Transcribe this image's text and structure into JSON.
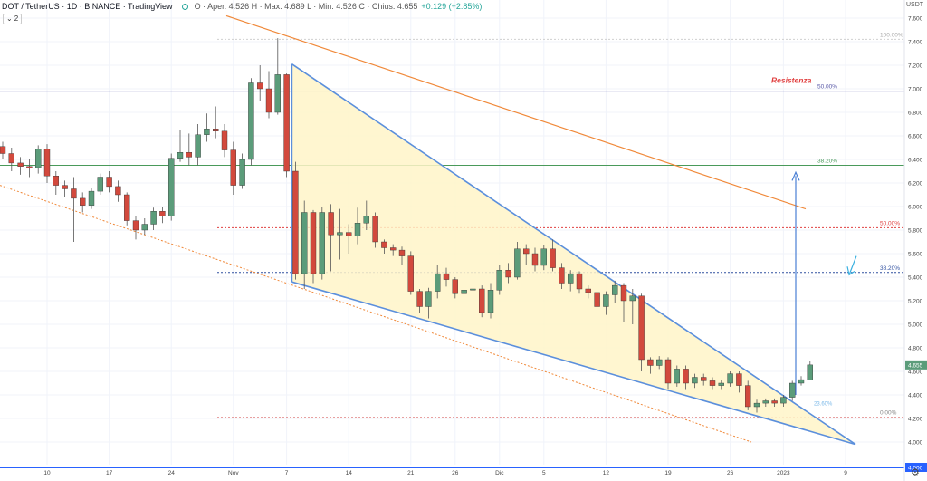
{
  "header": {
    "symbol": "DOT / TetherUS · 1D · BINANCE · TradingView",
    "ohlc": "O · Aper. 4.526  H · Max. 4.689  L · Min. 4.526  C · Chius. 4.655",
    "change": "+0.129 (+2.85%)",
    "indicator_count": "2",
    "currency": "USDT"
  },
  "colors": {
    "up": "#5b9c7a",
    "down": "#d2493d",
    "trend_blue": "#5b8fdc",
    "trend_orange": "#f0893a",
    "fill_yellow": "#fff5c8",
    "arrow": "#4a7fd4",
    "resistance_text": "#e03c3c"
  },
  "chart_data": {
    "type": "candlestick",
    "ylim": [
      4.0,
      7.6
    ],
    "y_ticks": [
      "7.600",
      "7.400",
      "7.200",
      "7.000",
      "6.800",
      "6.600",
      "6.400",
      "6.200",
      "6.000",
      "5.800",
      "5.600",
      "5.400",
      "5.200",
      "5.000",
      "4.800",
      "4.600",
      "4.400",
      "4.200",
      "4.000"
    ],
    "x_ticks": [
      {
        "label": "10",
        "idx": 5
      },
      {
        "label": "17",
        "idx": 12
      },
      {
        "label": "24",
        "idx": 19
      },
      {
        "label": "Nov",
        "idx": 26
      },
      {
        "label": "7",
        "idx": 32
      },
      {
        "label": "14",
        "idx": 39
      },
      {
        "label": "21",
        "idx": 46
      },
      {
        "label": "26",
        "idx": 51
      },
      {
        "label": "Dic",
        "idx": 56
      },
      {
        "label": "5",
        "idx": 61
      },
      {
        "label": "12",
        "idx": 68
      },
      {
        "label": "19",
        "idx": 75
      },
      {
        "label": "26",
        "idx": 82
      },
      {
        "label": "2023",
        "idx": 88
      },
      {
        "label": "9",
        "idx": 95
      }
    ],
    "current_price": "4.655",
    "floor_price": "4.000",
    "candles": [
      [
        6.51,
        6.45,
        6.55,
        6.4
      ],
      [
        6.45,
        6.37,
        6.5,
        6.3
      ],
      [
        6.37,
        6.34,
        6.42,
        6.27
      ],
      [
        6.34,
        6.33,
        6.4,
        6.25
      ],
      [
        6.33,
        6.49,
        6.52,
        6.28
      ],
      [
        6.49,
        6.26,
        6.53,
        6.2
      ],
      [
        6.26,
        6.18,
        6.3,
        6.1
      ],
      [
        6.18,
        6.15,
        6.22,
        6.08
      ],
      [
        6.15,
        6.07,
        6.25,
        5.7
      ],
      [
        6.07,
        6.01,
        6.12,
        5.95
      ],
      [
        6.01,
        6.13,
        6.16,
        5.98
      ],
      [
        6.13,
        6.25,
        6.28,
        6.1
      ],
      [
        6.25,
        6.17,
        6.3,
        6.12
      ],
      [
        6.17,
        6.1,
        6.22,
        6.04
      ],
      [
        6.1,
        5.88,
        6.12,
        5.84
      ],
      [
        5.88,
        5.8,
        5.92,
        5.72
      ],
      [
        5.8,
        5.85,
        5.9,
        5.76
      ],
      [
        5.85,
        5.96,
        5.99,
        5.8
      ],
      [
        5.96,
        5.92,
        6.0,
        5.86
      ],
      [
        5.92,
        6.41,
        6.45,
        5.88
      ],
      [
        6.41,
        6.46,
        6.65,
        6.38
      ],
      [
        6.46,
        6.42,
        6.62,
        6.35
      ],
      [
        6.42,
        6.61,
        6.7,
        6.35
      ],
      [
        6.61,
        6.66,
        6.79,
        6.55
      ],
      [
        6.66,
        6.64,
        6.85,
        6.58
      ],
      [
        6.64,
        6.48,
        6.7,
        6.42
      ],
      [
        6.48,
        6.18,
        6.55,
        6.1
      ],
      [
        6.18,
        6.4,
        6.45,
        6.15
      ],
      [
        6.4,
        7.05,
        7.09,
        6.35
      ],
      [
        7.05,
        7.0,
        7.2,
        6.9
      ],
      [
        7.0,
        6.8,
        7.15,
        6.75
      ],
      [
        6.8,
        7.12,
        7.43,
        6.78
      ],
      [
        7.12,
        6.3,
        7.13,
        6.25
      ],
      [
        6.3,
        5.43,
        6.38,
        5.38
      ],
      [
        5.43,
        5.95,
        6.05,
        5.3
      ],
      [
        5.95,
        5.43,
        5.97,
        5.35
      ],
      [
        5.43,
        5.95,
        6.0,
        5.38
      ],
      [
        5.95,
        5.76,
        6.02,
        5.45
      ],
      [
        5.76,
        5.78,
        5.98,
        5.55
      ],
      [
        5.78,
        5.75,
        5.85,
        5.6
      ],
      [
        5.75,
        5.86,
        5.99,
        5.68
      ],
      [
        5.86,
        5.92,
        6.05,
        5.8
      ],
      [
        5.92,
        5.7,
        5.95,
        5.65
      ],
      [
        5.7,
        5.65,
        5.72,
        5.6
      ],
      [
        5.65,
        5.63,
        5.68,
        5.58
      ],
      [
        5.63,
        5.58,
        5.66,
        5.5
      ],
      [
        5.58,
        5.28,
        5.62,
        5.25
      ],
      [
        5.28,
        5.15,
        5.3,
        5.1
      ],
      [
        5.15,
        5.28,
        5.31,
        5.05
      ],
      [
        5.28,
        5.43,
        5.5,
        5.22
      ],
      [
        5.43,
        5.38,
        5.48,
        5.32
      ],
      [
        5.38,
        5.26,
        5.4,
        5.22
      ],
      [
        5.26,
        5.29,
        5.33,
        5.2
      ],
      [
        5.29,
        5.3,
        5.48,
        5.25
      ],
      [
        5.3,
        5.1,
        5.33,
        5.06
      ],
      [
        5.1,
        5.29,
        5.35,
        5.05
      ],
      [
        5.29,
        5.46,
        5.5,
        5.25
      ],
      [
        5.46,
        5.4,
        5.52,
        5.35
      ],
      [
        5.4,
        5.64,
        5.7,
        5.38
      ],
      [
        5.64,
        5.6,
        5.68,
        5.5
      ],
      [
        5.6,
        5.5,
        5.65,
        5.45
      ],
      [
        5.5,
        5.64,
        5.67,
        5.46
      ],
      [
        5.64,
        5.48,
        5.72,
        5.45
      ],
      [
        5.48,
        5.35,
        5.52,
        5.3
      ],
      [
        5.35,
        5.43,
        5.46,
        5.28
      ],
      [
        5.43,
        5.3,
        5.45,
        5.26
      ],
      [
        5.3,
        5.27,
        5.33,
        5.22
      ],
      [
        5.27,
        5.15,
        5.3,
        5.1
      ],
      [
        5.15,
        5.25,
        5.28,
        5.08
      ],
      [
        5.25,
        5.33,
        5.37,
        5.18
      ],
      [
        5.33,
        5.2,
        5.35,
        5.02
      ],
      [
        5.2,
        5.24,
        5.3,
        5.0
      ],
      [
        5.24,
        4.7,
        5.26,
        4.6
      ],
      [
        4.7,
        4.65,
        4.72,
        4.58
      ],
      [
        4.65,
        4.7,
        4.73,
        4.62
      ],
      [
        4.7,
        4.5,
        4.72,
        4.45
      ],
      [
        4.5,
        4.62,
        4.65,
        4.47
      ],
      [
        4.62,
        4.5,
        4.65,
        4.45
      ],
      [
        4.5,
        4.55,
        4.58,
        4.46
      ],
      [
        4.55,
        4.52,
        4.58,
        4.48
      ],
      [
        4.52,
        4.48,
        4.55,
        4.45
      ],
      [
        4.48,
        4.5,
        4.53,
        4.45
      ],
      [
        4.5,
        4.58,
        4.6,
        4.47
      ],
      [
        4.58,
        4.48,
        4.6,
        4.42
      ],
      [
        4.48,
        4.3,
        4.52,
        4.27
      ],
      [
        4.3,
        4.33,
        4.36,
        4.25
      ],
      [
        4.33,
        4.35,
        4.37,
        4.3
      ],
      [
        4.35,
        4.33,
        4.37,
        4.3
      ],
      [
        4.33,
        4.38,
        4.4,
        4.3
      ],
      [
        4.38,
        4.5,
        4.52,
        4.35
      ],
      [
        4.5,
        4.53,
        4.56,
        4.48
      ],
      [
        4.526,
        4.655,
        4.689,
        4.526
      ]
    ],
    "fib_levels": [
      {
        "label": "100.00%",
        "price": 7.42
      },
      {
        "label": "50.00%",
        "price": 6.98
      },
      {
        "label": "38.20%",
        "price": 6.35
      },
      {
        "label": "50.00%",
        "price": 5.82
      },
      {
        "label": "38.20%",
        "price": 5.44
      },
      {
        "label": "0.00%",
        "price": 4.21
      }
    ],
    "annotation_resistenza": "Resistenza",
    "annotation_small": "23.60%"
  }
}
